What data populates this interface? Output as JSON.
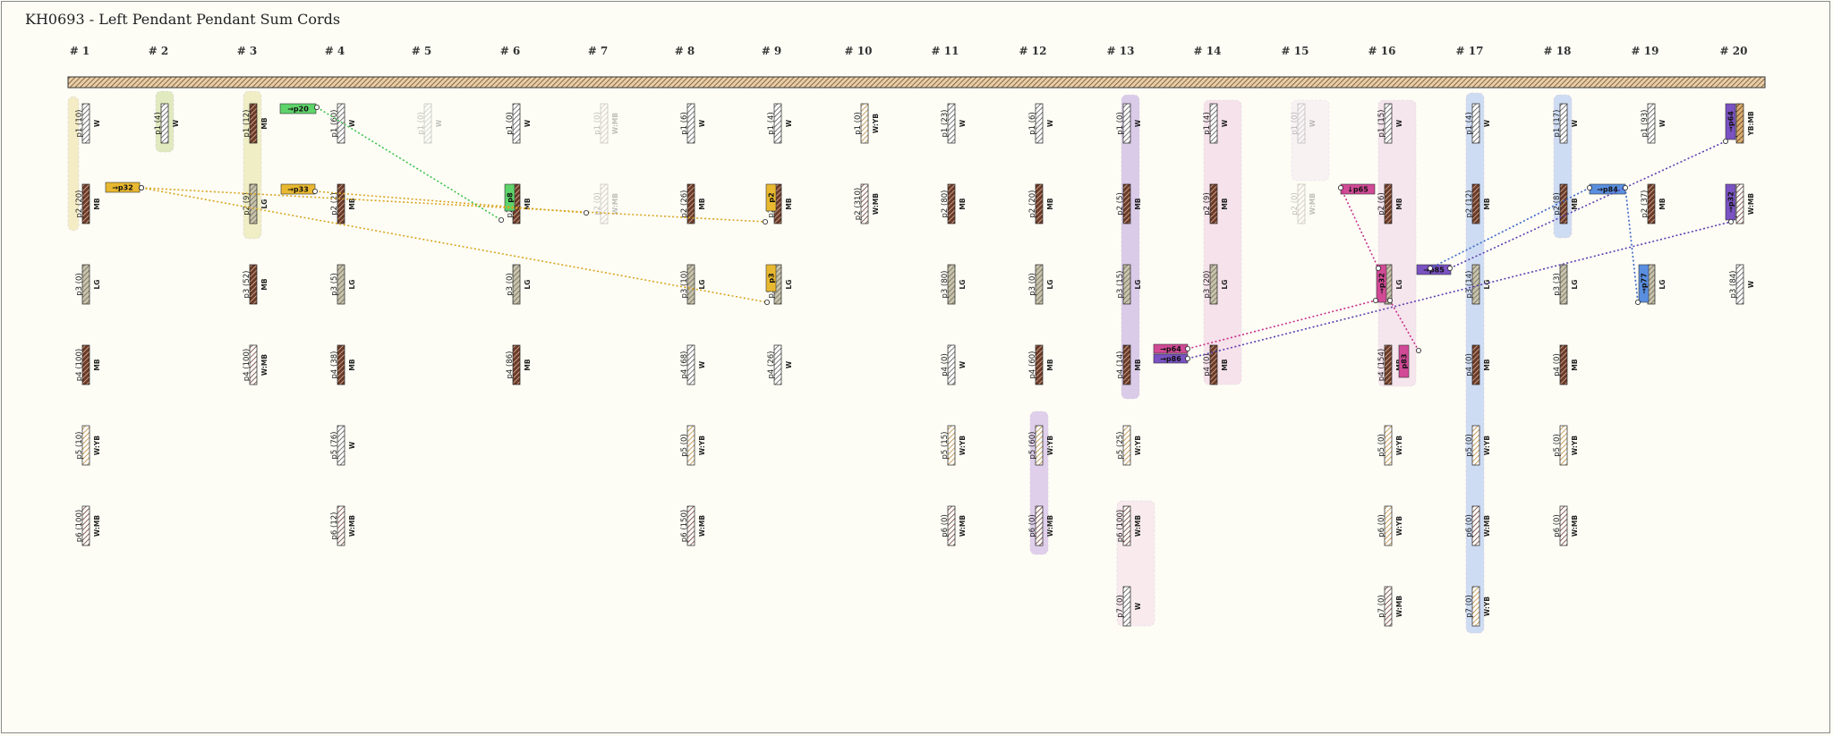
{
  "title": "KH0693 - Left Pendant Pendant Sum Cords",
  "cord_headers": [
    "# 1",
    "# 2",
    "# 3",
    "# 4",
    "# 5",
    "# 6",
    "# 7",
    "# 8",
    "# 9",
    "# 10",
    "# 11",
    "# 12",
    "# 13",
    "# 14",
    "# 15",
    "# 16",
    "# 17",
    "# 18",
    "# 19",
    "# 20"
  ],
  "color_legend": {
    "W": "#ffffff",
    "MB": "#6b3a2a",
    "LG": "#b5b09a",
    "YB": "#c9a25a",
    "W:MB": "#ffffff",
    "W:YB": "#ffffff",
    "YB:MB": "#c9a25a"
  },
  "cords": [
    {
      "id": "1",
      "pendants": [
        {
          "label": "p1 (10)",
          "color": "W"
        },
        {
          "label": "p2 (20)",
          "color": "MB"
        },
        {
          "label": "p3 (0)",
          "color": "LG"
        },
        {
          "label": "p4 (100)",
          "color": "MB"
        },
        {
          "label": "p5 (10)",
          "color": "W:YB"
        },
        {
          "label": "p6 (100)",
          "color": "W:MB"
        }
      ]
    },
    {
      "id": "2",
      "pendants": [
        {
          "label": "p1 (4)",
          "color": "W"
        }
      ]
    },
    {
      "id": "3",
      "pendants": [
        {
          "label": "p1 (12)",
          "color": "MB"
        },
        {
          "label": "p2 (9)",
          "color": "LG"
        },
        {
          "label": "p3 (52)",
          "color": "MB"
        },
        {
          "label": "p4 (100)",
          "color": "W:MB"
        }
      ]
    },
    {
      "id": "4",
      "pendants": [
        {
          "label": "p1 (60)",
          "color": "W"
        },
        {
          "label": "p2 (2)",
          "color": "MB"
        },
        {
          "label": "p3 (5)",
          "color": "LG"
        },
        {
          "label": "p4 (38)",
          "color": "MB"
        },
        {
          "label": "p5 (76)",
          "color": "W"
        },
        {
          "label": "p6 (12)",
          "color": "W:MB"
        }
      ]
    },
    {
      "id": "5",
      "pendants": [
        {
          "label": "p1 (0)",
          "color": "W",
          "faded": true
        }
      ]
    },
    {
      "id": "6",
      "pendants": [
        {
          "label": "p1 (0)",
          "color": "W"
        },
        {
          "label": "p2 (16)",
          "color": "MB"
        },
        {
          "label": "p3 (0)",
          "color": "LG"
        },
        {
          "label": "p4 (86)",
          "color": "MB"
        }
      ]
    },
    {
      "id": "7",
      "pendants": [
        {
          "label": "p1 (0)",
          "color": "W:MB",
          "faded": true
        },
        {
          "label": "p2 (0)",
          "color": "W:MB",
          "faded": true
        }
      ]
    },
    {
      "id": "8",
      "pendants": [
        {
          "label": "p1 (6)",
          "color": "W"
        },
        {
          "label": "p2 (26)",
          "color": "MB"
        },
        {
          "label": "p3 (10)",
          "color": "LG"
        },
        {
          "label": "p4 (68)",
          "color": "W"
        },
        {
          "label": "p5 (0)",
          "color": "W:YB"
        },
        {
          "label": "p6 (150)",
          "color": "W:MB"
        }
      ]
    },
    {
      "id": "9",
      "pendants": [
        {
          "label": "p1 (4)",
          "color": "W"
        },
        {
          "label": "p2 (30)",
          "color": "MB"
        },
        {
          "label": "p3 (25)",
          "color": "LG"
        },
        {
          "label": "p4 (26)",
          "color": "W"
        }
      ]
    },
    {
      "id": "10",
      "pendants": [
        {
          "label": "p1 (0)",
          "color": "W:YB"
        },
        {
          "label": "p2 (310)",
          "color": "W:MB"
        }
      ]
    },
    {
      "id": "11",
      "pendants": [
        {
          "label": "p1 (23)",
          "color": "W"
        },
        {
          "label": "p2 (80)",
          "color": "MB"
        },
        {
          "label": "p3 (80)",
          "color": "LG"
        },
        {
          "label": "p4 (0)",
          "color": "W"
        },
        {
          "label": "p5 (15)",
          "color": "W:YB"
        },
        {
          "label": "p6 (0)",
          "color": "W:MB"
        }
      ]
    },
    {
      "id": "12",
      "pendants": [
        {
          "label": "p1 (6)",
          "color": "W"
        },
        {
          "label": "p2 (20)",
          "color": "MB"
        },
        {
          "label": "p3 (0)",
          "color": "LG"
        },
        {
          "label": "p4 (60)",
          "color": "MB"
        },
        {
          "label": "p5 (60)",
          "color": "W:YB"
        },
        {
          "label": "p6 (0)",
          "color": "W:MB"
        }
      ]
    },
    {
      "id": "13",
      "pendants": [
        {
          "label": "p1 (0)",
          "color": "W"
        },
        {
          "label": "p2 (5)",
          "color": "MB"
        },
        {
          "label": "p3 (15)",
          "color": "LG"
        },
        {
          "label": "p4 (14)",
          "color": "MB"
        },
        {
          "label": "p5 (25)",
          "color": "W:YB"
        },
        {
          "label": "p6 (100)",
          "color": "W:MB"
        },
        {
          "label": "p7 (0)",
          "color": "W"
        }
      ]
    },
    {
      "id": "14",
      "pendants": [
        {
          "label": "p1 (4)",
          "color": "W"
        },
        {
          "label": "p2 (9)",
          "color": "MB"
        },
        {
          "label": "p3 (20)",
          "color": "LG"
        },
        {
          "label": "p4 (0)",
          "color": "MB"
        }
      ]
    },
    {
      "id": "15",
      "pendants": [
        {
          "label": "p1 (0)",
          "color": "W",
          "faded": true
        },
        {
          "label": "p2 (0)",
          "color": "W:MB",
          "faded": true
        }
      ]
    },
    {
      "id": "16",
      "pendants": [
        {
          "label": "p1 (15)",
          "color": "W"
        },
        {
          "label": "p2 (6)",
          "color": "MB"
        },
        {
          "label": "p3 (15)",
          "color": "LG"
        },
        {
          "label": "p4 (154)",
          "color": "MB"
        },
        {
          "label": "p5 (0)",
          "color": "W:YB"
        },
        {
          "label": "p6 (0)",
          "color": "W:YB"
        },
        {
          "label": "p7 (0)",
          "color": "W:MB"
        }
      ]
    },
    {
      "id": "17",
      "pendants": [
        {
          "label": "p1 (4)",
          "color": "W"
        },
        {
          "label": "p2 (12)",
          "color": "MB"
        },
        {
          "label": "p3 (14)",
          "color": "LG"
        },
        {
          "label": "p4 (0)",
          "color": "MB"
        },
        {
          "label": "p5 (0)",
          "color": "W:YB"
        },
        {
          "label": "p6 (0)",
          "color": "W:MB"
        },
        {
          "label": "p7 (0)",
          "color": "W:YB"
        }
      ]
    },
    {
      "id": "18",
      "pendants": [
        {
          "label": "p1 (17)",
          "color": "W"
        },
        {
          "label": "p2 (8)",
          "color": "MB"
        },
        {
          "label": "p3 (3)",
          "color": "LG"
        },
        {
          "label": "p4 (0)",
          "color": "MB"
        },
        {
          "label": "p5 (0)",
          "color": "W:YB"
        },
        {
          "label": "p6 (0)",
          "color": "W:MB"
        }
      ]
    },
    {
      "id": "19",
      "pendants": [
        {
          "label": "p1 (93)",
          "color": "W"
        },
        {
          "label": "p2 (37)",
          "color": "MB"
        },
        {
          "label": "p3 (5)",
          "color": "LG"
        }
      ]
    },
    {
      "id": "20",
      "pendants": [
        {
          "label": "p1 (60)",
          "color": "YB:MB"
        },
        {
          "label": "p2 (84)",
          "color": "W:MB"
        },
        {
          "label": "p3 (84)",
          "color": "W"
        }
      ]
    }
  ],
  "sum_tags": [
    {
      "text": "→p32",
      "color": "#e8b830"
    },
    {
      "text": "→p20",
      "color": "#5ed36a"
    },
    {
      "text": "→p33",
      "color": "#e8b830"
    },
    {
      "text": "p8",
      "color": "#5ed36a"
    },
    {
      "text": "p2",
      "color": "#e8b830"
    },
    {
      "text": "p3",
      "color": "#e8b830"
    },
    {
      "text": "→p64",
      "color": "#d14a96"
    },
    {
      "text": "→p86",
      "color": "#7a52c2"
    },
    {
      "text": "↓p65",
      "color": "#d14a96"
    },
    {
      "text": "→p32",
      "color": "#d14a96"
    },
    {
      "text": "→p85",
      "color": "#7a52c2"
    },
    {
      "text": "p83",
      "color": "#d14a96"
    },
    {
      "text": "→p84",
      "color": "#5a8fe0"
    },
    {
      "text": "→p77",
      "color": "#5a8fe0"
    },
    {
      "text": "→p64",
      "color": "#7a52c2"
    },
    {
      "text": "→p32",
      "color": "#7a52c2"
    }
  ]
}
